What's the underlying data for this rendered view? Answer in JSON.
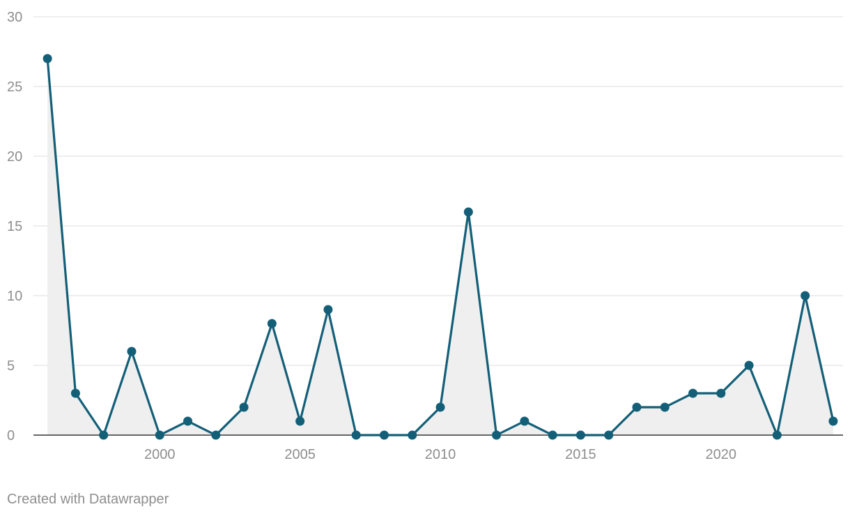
{
  "chart_data": {
    "type": "area",
    "title": "",
    "xlabel": "",
    "ylabel": "",
    "x": [
      1996,
      1997,
      1998,
      1999,
      2000,
      2001,
      2002,
      2003,
      2004,
      2005,
      2006,
      2007,
      2008,
      2009,
      2010,
      2011,
      2012,
      2013,
      2014,
      2015,
      2016,
      2017,
      2018,
      2019,
      2020,
      2021,
      2022,
      2023,
      2024
    ],
    "series": [
      {
        "values": [
          27,
          3,
          0,
          6,
          0,
          1,
          0,
          2,
          8,
          1,
          9,
          0,
          0,
          0,
          2,
          16,
          0,
          1,
          0,
          0,
          0,
          2,
          2,
          3,
          3,
          5,
          0,
          10,
          1
        ]
      }
    ],
    "xticks": [
      "2000",
      "2005",
      "2010",
      "2015",
      "2020"
    ],
    "yticks": [
      "0",
      "5",
      "10",
      "15",
      "20",
      "25",
      "30"
    ],
    "xlim": [
      1995.5,
      2024.35
    ],
    "ylim": [
      0,
      30
    ],
    "grid": true,
    "legend": "none",
    "colors": {
      "line": "#135f78",
      "area": "#efefef",
      "grid": "#e3e3e3",
      "axis": "#333333",
      "text": "#8e8e8e"
    }
  },
  "footer": {
    "credit": "Created with Datawrapper"
  }
}
